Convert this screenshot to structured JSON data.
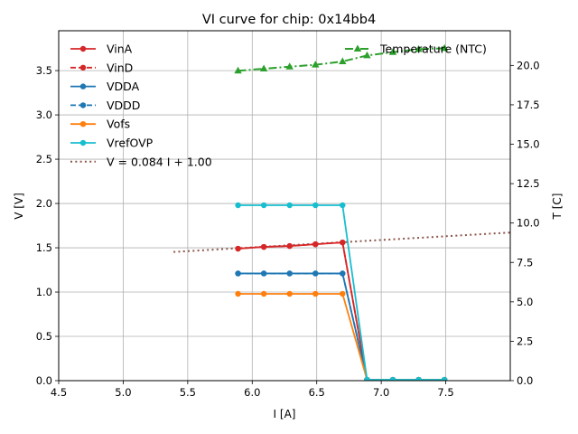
{
  "chart_data": {
    "type": "line",
    "title": "VI curve for chip: 0x14bb4",
    "xlabel": "I [A]",
    "ylabel": "V [V]",
    "y2label": "T [C]",
    "xlim": [
      4.5,
      8.0
    ],
    "ylim": [
      0.0,
      3.95
    ],
    "y2lim": [
      0.0,
      22.2
    ],
    "xticks": [
      "4.5",
      "5.0",
      "5.5",
      "6.0",
      "6.5",
      "7.0",
      "7.5"
    ],
    "yticks": [
      "0.0",
      "0.5",
      "1.0",
      "1.5",
      "2.0",
      "2.5",
      "3.0",
      "3.5"
    ],
    "y2ticks": [
      "0.0",
      "2.5",
      "5.0",
      "7.5",
      "10.0",
      "12.5",
      "15.0",
      "17.5",
      "20.0"
    ],
    "grid": true,
    "legend_placement": "upper-left",
    "legend2_placement": "upper-right",
    "x": [
      5.89,
      6.09,
      6.29,
      6.49,
      6.7,
      6.89,
      7.09,
      7.29,
      7.49
    ],
    "series": [
      {
        "name": "VinA",
        "color": "#d62728",
        "dash": "solid",
        "values": [
          1.49,
          1.51,
          1.52,
          1.54,
          1.56,
          0.01,
          0.01,
          0.01,
          0.01
        ]
      },
      {
        "name": "VinD",
        "color": "#d62728",
        "dash": "dashed",
        "values": [
          1.49,
          1.51,
          1.52,
          1.54,
          1.56,
          0.01,
          0.01,
          0.01,
          0.01
        ]
      },
      {
        "name": "VDDA",
        "color": "#1f77b4",
        "dash": "solid",
        "values": [
          1.21,
          1.21,
          1.21,
          1.21,
          1.21,
          0.01,
          0.01,
          0.01,
          0.01
        ]
      },
      {
        "name": "VDDD",
        "color": "#1f77b4",
        "dash": "dashed",
        "values": [
          1.21,
          1.21,
          1.21,
          1.21,
          1.21,
          0.01,
          0.01,
          0.01,
          0.01
        ]
      },
      {
        "name": "Vofs",
        "color": "#ff7f0e",
        "dash": "solid",
        "values": [
          0.98,
          0.98,
          0.98,
          0.98,
          0.98,
          0.01,
          0.01,
          0.01,
          0.01
        ]
      },
      {
        "name": "VrefOVP",
        "color": "#17becf",
        "dash": "solid",
        "values": [
          1.98,
          1.98,
          1.98,
          1.98,
          1.98,
          0.01,
          0.01,
          0.01,
          0.01
        ]
      }
    ],
    "fit": {
      "name": "V = 0.084 I + 1.00",
      "color": "#8c564b",
      "slope": 0.084,
      "intercept": 1.0,
      "x_range": [
        5.39,
        8.0
      ]
    },
    "temperature": {
      "name": "Temperature (NTC)",
      "color": "#2ca02c",
      "axis": "right",
      "values": [
        19.66,
        19.79,
        19.92,
        20.04,
        20.25,
        20.63,
        20.84,
        21.03,
        21.09
      ]
    }
  }
}
